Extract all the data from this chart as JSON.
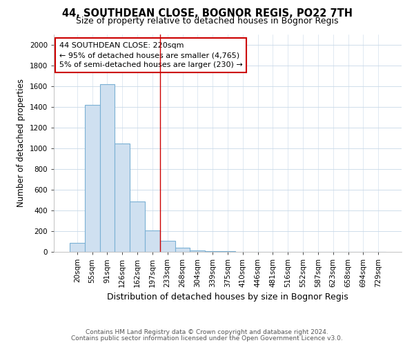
{
  "title1": "44, SOUTHDEAN CLOSE, BOGNOR REGIS, PO22 7TH",
  "title2": "Size of property relative to detached houses in Bognor Regis",
  "xlabel": "Distribution of detached houses by size in Bognor Regis",
  "ylabel": "Number of detached properties",
  "categories": [
    "20sqm",
    "55sqm",
    "91sqm",
    "126sqm",
    "162sqm",
    "197sqm",
    "233sqm",
    "268sqm",
    "304sqm",
    "339sqm",
    "375sqm",
    "410sqm",
    "446sqm",
    "481sqm",
    "516sqm",
    "552sqm",
    "587sqm",
    "623sqm",
    "658sqm",
    "694sqm",
    "729sqm"
  ],
  "values": [
    90,
    1420,
    1620,
    1050,
    490,
    205,
    110,
    40,
    15,
    10,
    10,
    0,
    0,
    0,
    0,
    0,
    0,
    0,
    0,
    0,
    0
  ],
  "bar_color": "#cfe0f0",
  "bar_edge_color": "#7ab0d4",
  "bar_linewidth": 0.8,
  "red_line_x": 5.5,
  "annotation_line1": "44 SOUTHDEAN CLOSE: 220sqm",
  "annotation_line2": "← 95% of detached houses are smaller (4,765)",
  "annotation_line3": "5% of semi-detached houses are larger (230) →",
  "annotation_box_color": "#ffffff",
  "annotation_box_edgecolor": "#cc0000",
  "ylim": [
    0,
    2100
  ],
  "yticks": [
    0,
    200,
    400,
    600,
    800,
    1000,
    1200,
    1400,
    1600,
    1800,
    2000
  ],
  "footer1": "Contains HM Land Registry data © Crown copyright and database right 2024.",
  "footer2": "Contains public sector information licensed under the Open Government Licence v3.0.",
  "background_color": "#ffffff",
  "plot_background": "#ffffff",
  "title1_fontsize": 10.5,
  "title2_fontsize": 9,
  "xlabel_fontsize": 9,
  "ylabel_fontsize": 8.5,
  "tick_fontsize": 7.5,
  "footer_fontsize": 6.5,
  "grid_color": "#c8d8e8"
}
